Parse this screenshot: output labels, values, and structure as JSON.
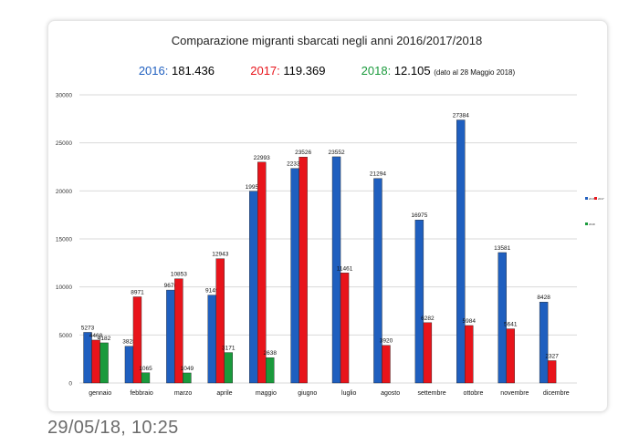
{
  "title": "Comparazione migranti sbarcati negli anni 2016/2017/2018",
  "totals": [
    {
      "year": "2016",
      "value": "181.436",
      "color": "#1f5fbf",
      "note": ""
    },
    {
      "year": "2017",
      "value": "119.369",
      "color": "#e8141b",
      "note": ""
    },
    {
      "year": "2018",
      "value": "12.105",
      "color": "#1a9a3c",
      "note": "(dato al 28 Maggio 2018)"
    }
  ],
  "timestamp": "29/05/18, 10:25",
  "chart_data": {
    "type": "bar",
    "title": "Comparazione migranti sbarcati negli anni 2016/2017/2018",
    "categories": [
      "gennaio",
      "febbraio",
      "marzo",
      "aprile",
      "maggio",
      "giugno",
      "luglio",
      "agosto",
      "settembre",
      "ottobre",
      "novembre",
      "dicembre"
    ],
    "series": [
      {
        "name": "2016",
        "color": "#1f5fbf",
        "values": [
          5273,
          3828,
          9676,
          9149,
          19957,
          22339,
          23552,
          21294,
          16975,
          27384,
          13581,
          8428
        ]
      },
      {
        "name": "2017",
        "color": "#e8141b",
        "values": [
          4468,
          8971,
          10853,
          12943,
          22993,
          23526,
          11461,
          3920,
          6282,
          5984,
          5641,
          2327
        ]
      },
      {
        "name": "2018",
        "color": "#1a9a3c",
        "values": [
          4182,
          1065,
          1049,
          3171,
          2638,
          null,
          null,
          null,
          null,
          null,
          null,
          null
        ]
      }
    ],
    "labels": [
      [
        "5273",
        "3828",
        "9676",
        "9149",
        "19957",
        "22339",
        "23552",
        "21294",
        "16975",
        "27384",
        "13581",
        "8428"
      ],
      [
        "4468",
        "8971",
        "10853",
        "12943",
        "22993",
        "23526",
        "11461",
        "3920",
        "6282",
        "5984",
        "5641",
        "2327"
      ],
      [
        "4182",
        "1065",
        "1049",
        "3171",
        "2638",
        "",
        "",
        "",
        "",
        "",
        "",
        ""
      ]
    ],
    "yticks": [
      0,
      5000,
      10000,
      15000,
      20000,
      25000,
      30000
    ],
    "ylim": [
      0,
      30000
    ],
    "grid": true,
    "legend": "right"
  }
}
